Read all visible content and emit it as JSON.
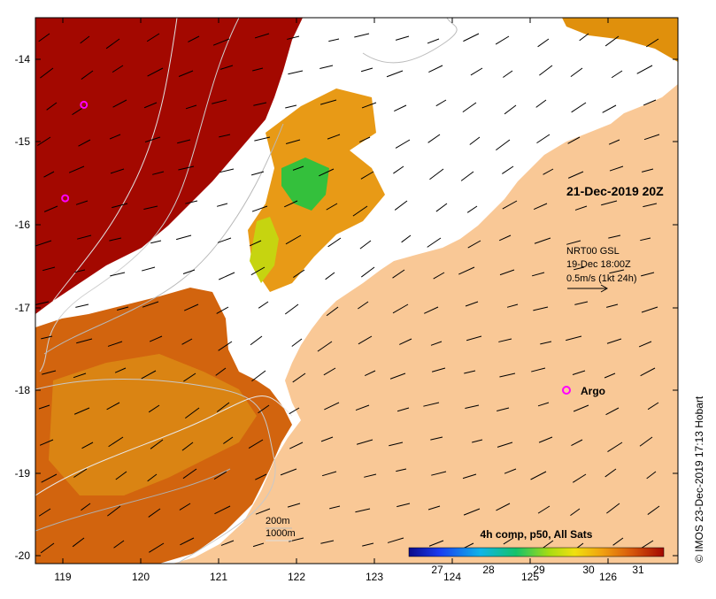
{
  "map": {
    "date_label": "21-Dec-2019 20Z",
    "lon_ticks": [
      "119",
      "120",
      "121",
      "122",
      "123",
      "124",
      "125",
      "126"
    ],
    "lat_ticks": [
      "-14",
      "-15",
      "-16",
      "-17",
      "-18",
      "-19",
      "-20"
    ],
    "current_info": {
      "line1": "NRT00 GSL",
      "line2": "19-Dec 18:00Z",
      "line3": "0.5m/s (1kt 24h)"
    },
    "argo_label": "Argo",
    "depth_legend": {
      "contour_a": "200m",
      "contour_b": "1000m"
    },
    "colorbar": {
      "title": "4h comp, p50, All Sats",
      "ticks": [
        "27",
        "28",
        "29",
        "30",
        "31"
      ],
      "range": [
        26.3,
        31.6
      ]
    },
    "credit": "© IMOS 23-Dec-2019 17:13 Hobart",
    "colors": {
      "land": "#f9c896",
      "hot": "#a30800",
      "warm": "#d86a10",
      "cloud": "#ffffff"
    },
    "argo_floats": [
      {
        "lon": 119.27,
        "lat": -14.55
      },
      {
        "lon": 119.03,
        "lat": -15.68
      }
    ]
  }
}
